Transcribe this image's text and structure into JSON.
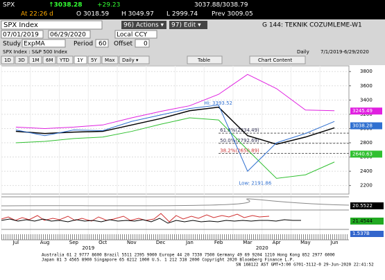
{
  "header": {
    "ticker": "SPX",
    "last": "↑3038.28",
    "change": "+29.23",
    "bid_ask": "3037.88/3038.79",
    "at": "At 22:26 d",
    "open": "O 3018.59",
    "high": "H 3049.97",
    "low": "L 2999.74",
    "prev": "Prev 3009.05"
  },
  "toolbar": {
    "security": "SPX Index",
    "actions": "96) Actions ▾",
    "edit": "97) Edit ▾",
    "page": "G 144: TEKNIK COZUMLEME-W1",
    "start": "07/01/2019",
    "end": "06/29/2020",
    "currency": "Local CCY",
    "study_label": "Study",
    "study": "ExpMA",
    "period_label": "Period",
    "period": "60",
    "offset_label": "Offset",
    "offset": "0",
    "description": "SPX Index : S&P 500 Index",
    "frequency": "Daily",
    "range": "7/1/2019-6/29/2020",
    "buttons": [
      "1D",
      "3D",
      "1M",
      "6M",
      "YTD",
      "1Y",
      "5Y",
      "Max",
      "Daily ▾"
    ],
    "table": "Table",
    "chart_content": "Chart Content"
  },
  "chart_data": {
    "type": "line",
    "categories": [
      "Jul",
      "Aug",
      "Sep",
      "Oct",
      "Nov",
      "Dec",
      "Jan",
      "Feb",
      "Mar",
      "Apr",
      "May",
      "Jun"
    ],
    "years": [
      "2019",
      "2020"
    ],
    "series": [
      {
        "name": "Upper Band",
        "color": "#e020e0",
        "values": [
          3020,
          3000,
          3020,
          3050,
          3150,
          3240,
          3320,
          3480,
          3760,
          3560,
          3260,
          3250
        ]
      },
      {
        "name": "Lower Band",
        "color": "#30c030",
        "values": [
          2800,
          2820,
          2860,
          2880,
          2960,
          3060,
          3150,
          3120,
          2700,
          2300,
          2350,
          2530
        ]
      },
      {
        "name": "ExpMA",
        "color": "#000000",
        "values": [
          2960,
          2930,
          2950,
          2960,
          3050,
          3140,
          3250,
          3300,
          2900,
          2780,
          2880,
          3010
        ]
      },
      {
        "name": "Price",
        "color": "#3070d0",
        "values": [
          2980,
          2900,
          2980,
          2970,
          3100,
          3190,
          3280,
          3330,
          2400,
          2800,
          2930,
          3100
        ]
      }
    ],
    "ylim": [
      2080,
      3880
    ],
    "yticks": [
      2200,
      2400,
      2600,
      2800,
      3000,
      3200,
      3400,
      3600,
      3800
    ],
    "last_values": [
      {
        "value": 3245.49,
        "color": "#e020e0"
      },
      {
        "value": 3038.28,
        "color": "#3070d0"
      },
      {
        "value": 2640.63,
        "color": "#30c030"
      }
    ],
    "fib_levels": [
      {
        "label": "61.8%(2934.49)",
        "value": 2934.49
      },
      {
        "label": "50.0%(2792.69)",
        "value": 2792.69
      },
      {
        "label": "38.2%(2650.89)",
        "value": 2650.89
      }
    ],
    "hi": {
      "label": "Hi: 3393.52",
      "value": 3393.52
    },
    "lo": {
      "label": "Low: 2191.86",
      "value": 2191.86
    },
    "panel_values": [
      "20.5522",
      "21.4544",
      "1.537B"
    ]
  },
  "footer": [
    "Australia 61 2 9777 8600 Brazil 5511 2395 9000 Europe 44 20 7330 7500 Germany 49 69 9204 1210 Hong Kong 852 2977 6000",
    "Japan 81 3 4565 8900      Singapore 65 6212 1000      U.S. 1 212 318 2000      Copyright 2020 Bloomberg Finance L.P.",
    "SN 168122 AST  GMT+3:00 G701-3112-0 29-Jun-2020 22:41:52"
  ]
}
